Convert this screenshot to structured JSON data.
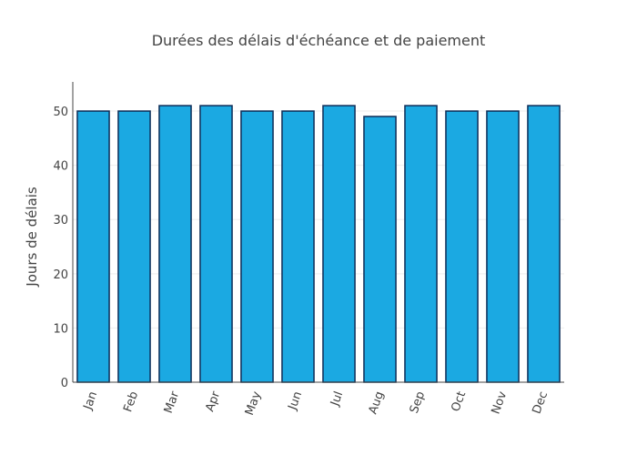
{
  "chart_data": {
    "type": "bar",
    "title": "Durées des délais d'échéance et de paiement",
    "xlabel": "",
    "ylabel": "Jours de délais",
    "categories": [
      "Jan",
      "Feb",
      "Mar",
      "Apr",
      "May",
      "Jun",
      "Jul",
      "Aug",
      "Sep",
      "Oct",
      "Nov",
      "Dec"
    ],
    "values": [
      50,
      50,
      51,
      51,
      50,
      50,
      51,
      49,
      51,
      50,
      50,
      51
    ],
    "ylim": [
      0,
      53.7
    ],
    "yticks": [
      0,
      10,
      20,
      30,
      40,
      50
    ],
    "grid": true,
    "legend": "none",
    "colors": {
      "bar_fill": "#1ba9e2",
      "bar_stroke": "#0d2c57",
      "grid": "#eeeeee",
      "axis_line": "#444444",
      "text": "#444444"
    }
  }
}
